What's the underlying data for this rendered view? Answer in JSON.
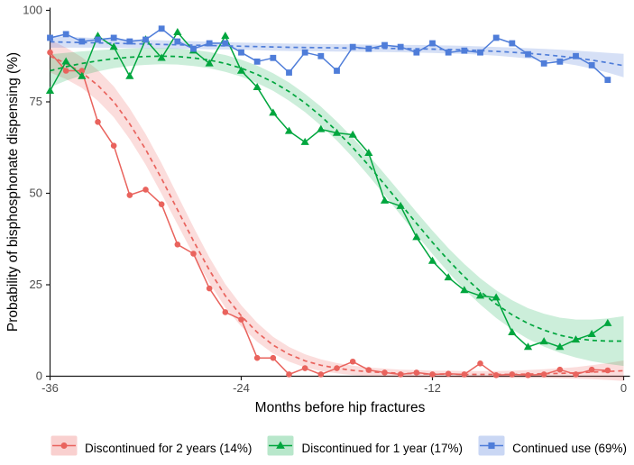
{
  "figure": {
    "x_axis": {
      "title": "Months before hip fractures",
      "ticks": [
        "-36",
        "-24",
        "-12",
        "0"
      ],
      "tick_values": [
        -36,
        -24,
        -12,
        0
      ]
    },
    "y_axis": {
      "title": "Probability of bisphosphonate dispensing (%)",
      "ticks": [
        "0",
        "25",
        "50",
        "75",
        "100"
      ],
      "tick_values": [
        0,
        25,
        50,
        75,
        100
      ]
    }
  },
  "chart_data": {
    "type": "line",
    "title": "",
    "xlabel": "Months before hip fractures",
    "ylabel": "Probability of bisphosphonate dispensing (%)",
    "xlim": [
      -36,
      0
    ],
    "ylim": [
      0,
      100
    ],
    "grid": false,
    "legend_position": "bottom",
    "months": [
      -36,
      -35,
      -34,
      -33,
      -32,
      -31,
      -30,
      -29,
      -28,
      -27,
      -26,
      -25,
      -24,
      -23,
      -22,
      -21,
      -20,
      -19,
      -18,
      -17,
      -16,
      -15,
      -14,
      -13,
      -12,
      -11,
      -10,
      -9,
      -8,
      -7,
      -6,
      -5,
      -4,
      -3,
      -2,
      -1
    ],
    "fit_months": [
      -36,
      -35,
      -34,
      -33,
      -32,
      -31,
      -30,
      -29,
      -28,
      -27,
      -26,
      -25,
      -24,
      -23,
      -22,
      -21,
      -20,
      -19,
      -18,
      -17,
      -16,
      -15,
      -14,
      -13,
      -12,
      -11,
      -10,
      -9,
      -8,
      -7,
      -6,
      -5,
      -4,
      -3,
      -2,
      -1,
      0
    ],
    "series": [
      {
        "name": "Discontinued for 2 years (14%)",
        "marker": "circle",
        "color": "#e9635d",
        "ribbon_color": "rgba(235,100,95,0.22)",
        "legend_key_fill": "rgba(235,100,95,0.30)",
        "values": [
          88.5,
          83.5,
          83.5,
          69.5,
          63,
          49.5,
          51,
          47,
          36,
          33.5,
          24,
          17.5,
          15.5,
          5,
          5,
          0.5,
          2.2,
          0.5,
          2.2,
          4,
          1.7,
          1,
          0.5,
          1,
          0.5,
          0.7,
          0.5,
          3.5,
          0.3,
          0.5,
          0.3,
          0.5,
          1.8,
          0.5,
          1.8,
          1.6
        ],
        "fit": [
          87.5,
          85.5,
          83,
          79.5,
          75,
          69,
          62,
          54,
          45.5,
          37,
          29,
          22,
          16.5,
          12,
          8.5,
          6,
          4.2,
          3,
          2.2,
          1.6,
          1.2,
          1,
          0.8,
          0.7,
          0.6,
          0.6,
          0.5,
          0.5,
          0.5,
          0.5,
          0.6,
          0.7,
          0.8,
          0.9,
          1.1,
          1.3,
          1.5
        ],
        "ci_halfwidth": [
          4.5,
          4.3,
          4.2,
          4.2,
          4.2,
          4.2,
          4.2,
          4.2,
          4,
          3.8,
          3.5,
          3.2,
          2.9,
          2.6,
          2.3,
          2,
          1.8,
          1.6,
          1.4,
          1.3,
          1.2,
          1.1,
          1,
          1,
          0.9,
          0.9,
          0.9,
          0.9,
          0.9,
          1,
          1.1,
          1.2,
          1.4,
          1.6,
          1.9,
          2.3,
          2.8
        ]
      },
      {
        "name": "Discontinued for 1 year (17%)",
        "marker": "triangle",
        "color": "#00a63e",
        "ribbon_color": "rgba(0,170,70,0.20)",
        "legend_key_fill": "rgba(0,170,70,0.28)",
        "values": [
          78,
          86,
          82,
          93,
          90,
          82,
          92,
          87,
          94,
          89,
          85.5,
          93,
          83.5,
          79,
          72,
          67,
          64,
          67.5,
          66.5,
          66,
          61,
          48,
          46.5,
          38,
          31.5,
          27,
          23.5,
          22,
          21.5,
          12,
          8,
          9.5,
          8,
          10,
          11.5,
          14.5
        ],
        "fit": [
          83.5,
          84.6,
          85.5,
          86.2,
          86.8,
          87.2,
          87.4,
          87.5,
          87.4,
          87,
          86.4,
          85.5,
          84.2,
          82.5,
          80.4,
          77.8,
          74.7,
          71.1,
          67,
          62.5,
          57.6,
          52.4,
          47.1,
          41.8,
          36.6,
          31.7,
          27.2,
          23.2,
          19.7,
          16.8,
          14.4,
          12.6,
          11.2,
          10.3,
          9.8,
          9.6,
          9.6
        ],
        "ci_halfwidth": [
          4.5,
          3.8,
          3.3,
          2.9,
          2.6,
          2.4,
          2.3,
          2.2,
          2.2,
          2.2,
          2.2,
          2.3,
          2.3,
          2.4,
          2.4,
          2.5,
          2.5,
          2.6,
          2.6,
          2.7,
          2.8,
          2.9,
          3,
          3.1,
          3.2,
          3.3,
          3.5,
          3.6,
          3.8,
          4,
          4.2,
          4.5,
          4.8,
          5.2,
          5.7,
          6.2,
          6.8
        ]
      },
      {
        "name": "Continued use (69%)",
        "marker": "square",
        "color": "#4f7dd9",
        "ribbon_color": "rgba(90,130,220,0.25)",
        "legend_key_fill": "rgba(90,130,220,0.32)",
        "values": [
          92.5,
          93.5,
          91.5,
          92,
          92.5,
          91.5,
          92,
          95,
          91.5,
          89.5,
          91,
          91,
          88.5,
          86,
          87,
          83,
          88.5,
          87.5,
          83.5,
          90,
          89.5,
          90.5,
          90,
          88.5,
          91,
          88.5,
          89,
          88.5,
          92.5,
          91,
          88,
          85.5,
          86,
          87.5,
          85,
          81
        ],
        "fit": [
          91.4,
          91.3,
          91.2,
          91.1,
          91,
          90.9,
          90.8,
          90.7,
          90.6,
          90.5,
          90.4,
          90.3,
          90.2,
          90.1,
          90,
          89.9,
          89.85,
          89.8,
          89.75,
          89.7,
          89.65,
          89.6,
          89.55,
          89.5,
          89.4,
          89.3,
          89.2,
          89,
          88.8,
          88.55,
          88.25,
          87.9,
          87.5,
          87,
          86.4,
          85.7,
          84.9
        ],
        "ci_halfwidth": [
          1.6,
          1.5,
          1.4,
          1.3,
          1.25,
          1.2,
          1.15,
          1.1,
          1.1,
          1.05,
          1.05,
          1,
          1,
          1,
          1,
          1,
          1,
          1,
          1,
          1,
          1,
          1,
          1,
          1.05,
          1.05,
          1.1,
          1.1,
          1.15,
          1.2,
          1.3,
          1.4,
          1.55,
          1.75,
          2,
          2.3,
          2.7,
          3.2
        ]
      }
    ]
  }
}
